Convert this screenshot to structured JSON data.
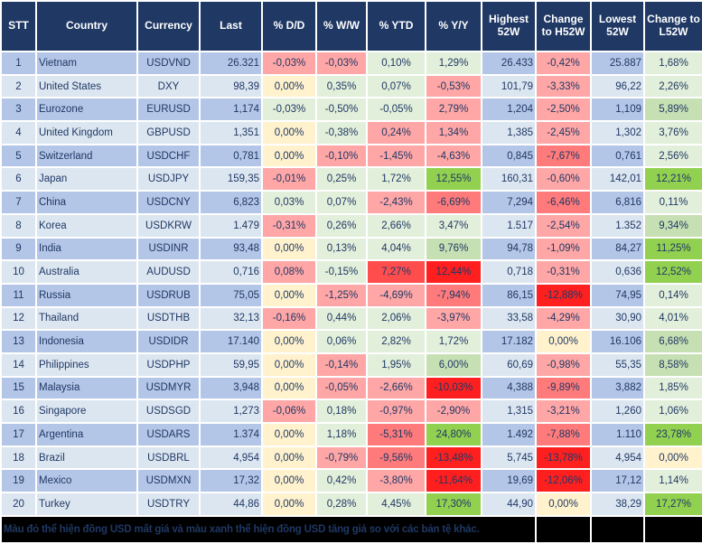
{
  "title": "FX rate table",
  "palette": {
    "header_bg": "#1F3864",
    "header_text": "#FFFFFF",
    "grid": "#FFFFFF",
    "text": "#1F3864",
    "row_odd": "#B4C6E7",
    "row_even": "#DCE6F1",
    "neutral": "#FFF2CC",
    "green_light": "#E2EFDA",
    "green_med": "#C6E0B4",
    "green_strong": "#92D050",
    "red_light": "#FFA6A6",
    "red_med": "#FF7B7B",
    "red_strong": "#FF4D4D",
    "red_deep": "#FF1F1F",
    "note_bg": "#000000",
    "note_text": "#2F3BBF"
  },
  "columns": [
    {
      "id": "stt",
      "label": "STT"
    },
    {
      "id": "country",
      "label": "Country"
    },
    {
      "id": "currency",
      "label": "Currency"
    },
    {
      "id": "last",
      "label": "Last"
    },
    {
      "id": "dd",
      "label": "% D/D"
    },
    {
      "id": "ww",
      "label": "% W/W"
    },
    {
      "id": "ytd",
      "label": "% YTD"
    },
    {
      "id": "yy",
      "label": "% Y/Y"
    },
    {
      "id": "high",
      "label": "Highest 52W"
    },
    {
      "id": "chg_h",
      "label": "Change to H52W"
    },
    {
      "id": "low",
      "label": "Lowest 52W"
    },
    {
      "id": "chg_l",
      "label": "Change to L52W"
    }
  ],
  "rows": [
    {
      "stt": "1",
      "country": "Vietnam",
      "currency": "USDVND",
      "last": "26.321",
      "dd": {
        "v": "-0,03%",
        "c": "rl"
      },
      "ww": {
        "v": "-0,03%",
        "c": "rl"
      },
      "ytd": {
        "v": "0,10%",
        "c": "gl"
      },
      "yy": {
        "v": "1,29%",
        "c": "gl"
      },
      "high": "26.433",
      "chg_h": {
        "v": "-0,42%",
        "c": "rl"
      },
      "low": "25.887",
      "chg_l": {
        "v": "1,68%",
        "c": "gl"
      }
    },
    {
      "stt": "2",
      "country": "United States",
      "currency": "DXY",
      "last": "98,39",
      "dd": {
        "v": "0,00%",
        "c": "n"
      },
      "ww": {
        "v": "0,35%",
        "c": "gl"
      },
      "ytd": {
        "v": "0,07%",
        "c": "gl"
      },
      "yy": {
        "v": "-0,53%",
        "c": "rl"
      },
      "high": "101,79",
      "chg_h": {
        "v": "-3,33%",
        "c": "rl"
      },
      "low": "96,22",
      "chg_l": {
        "v": "2,26%",
        "c": "gl"
      }
    },
    {
      "stt": "3",
      "country": "Eurozone",
      "currency": "EURUSD",
      "last": "1,174",
      "dd": {
        "v": "-0,03%",
        "c": "gl"
      },
      "ww": {
        "v": "-0,50%",
        "c": "gl"
      },
      "ytd": {
        "v": "-0,05%",
        "c": "gl"
      },
      "yy": {
        "v": "2,79%",
        "c": "rl"
      },
      "high": "1,204",
      "chg_h": {
        "v": "-2,50%",
        "c": "rl"
      },
      "low": "1,109",
      "chg_l": {
        "v": "5,89%",
        "c": "gm"
      }
    },
    {
      "stt": "4",
      "country": "United Kingdom",
      "currency": "GBPUSD",
      "last": "1,351",
      "dd": {
        "v": "0,00%",
        "c": "n"
      },
      "ww": {
        "v": "-0,38%",
        "c": "gl"
      },
      "ytd": {
        "v": "0,24%",
        "c": "rl"
      },
      "yy": {
        "v": "1,34%",
        "c": "rl"
      },
      "high": "1,385",
      "chg_h": {
        "v": "-2,45%",
        "c": "rl"
      },
      "low": "1,302",
      "chg_l": {
        "v": "3,76%",
        "c": "gl"
      }
    },
    {
      "stt": "5",
      "country": "Switzerland",
      "currency": "USDCHF",
      "last": "0,781",
      "dd": {
        "v": "0,00%",
        "c": "n"
      },
      "ww": {
        "v": "-0,10%",
        "c": "rl"
      },
      "ytd": {
        "v": "-1,45%",
        "c": "rl"
      },
      "yy": {
        "v": "-4,63%",
        "c": "rl"
      },
      "high": "0,845",
      "chg_h": {
        "v": "-7,67%",
        "c": "rm"
      },
      "low": "0,761",
      "chg_l": {
        "v": "2,56%",
        "c": "gl"
      }
    },
    {
      "stt": "6",
      "country": "Japan",
      "currency": "USDJPY",
      "last": "159,35",
      "dd": {
        "v": "-0,01%",
        "c": "rl"
      },
      "ww": {
        "v": "0,25%",
        "c": "gl"
      },
      "ytd": {
        "v": "1,72%",
        "c": "gl"
      },
      "yy": {
        "v": "12,55%",
        "c": "gs"
      },
      "high": "160,31",
      "chg_h": {
        "v": "-0,60%",
        "c": "rl"
      },
      "low": "142,01",
      "chg_l": {
        "v": "12,21%",
        "c": "gs"
      }
    },
    {
      "stt": "7",
      "country": "China",
      "currency": "USDCNY",
      "last": "6,823",
      "dd": {
        "v": "0,03%",
        "c": "gl"
      },
      "ww": {
        "v": "0,07%",
        "c": "gl"
      },
      "ytd": {
        "v": "-2,43%",
        "c": "rl"
      },
      "yy": {
        "v": "-6,69%",
        "c": "rm"
      },
      "high": "7,294",
      "chg_h": {
        "v": "-6,46%",
        "c": "rm"
      },
      "low": "6,816",
      "chg_l": {
        "v": "0,11%",
        "c": "gl"
      }
    },
    {
      "stt": "8",
      "country": "Korea",
      "currency": "USDKRW",
      "last": "1.479",
      "dd": {
        "v": "-0,31%",
        "c": "rl"
      },
      "ww": {
        "v": "0,26%",
        "c": "gl"
      },
      "ytd": {
        "v": "2,66%",
        "c": "gl"
      },
      "yy": {
        "v": "3,47%",
        "c": "gl"
      },
      "high": "1.517",
      "chg_h": {
        "v": "-2,54%",
        "c": "rl"
      },
      "low": "1.352",
      "chg_l": {
        "v": "9,34%",
        "c": "gm"
      }
    },
    {
      "stt": "9",
      "country": "India",
      "currency": "USDINR",
      "last": "93,48",
      "dd": {
        "v": "0,00%",
        "c": "n"
      },
      "ww": {
        "v": "0,13%",
        "c": "gl"
      },
      "ytd": {
        "v": "4,04%",
        "c": "gl"
      },
      "yy": {
        "v": "9,76%",
        "c": "gm"
      },
      "high": "94,78",
      "chg_h": {
        "v": "-1,09%",
        "c": "rl"
      },
      "low": "84,27",
      "chg_l": {
        "v": "11,25%",
        "c": "gs"
      }
    },
    {
      "stt": "10",
      "country": "Australia",
      "currency": "AUDUSD",
      "last": "0,716",
      "dd": {
        "v": "0,08%",
        "c": "rl"
      },
      "ww": {
        "v": "-0,15%",
        "c": "gl"
      },
      "ytd": {
        "v": "7,27%",
        "c": "rs"
      },
      "yy": {
        "v": "12,44%",
        "c": "rd"
      },
      "high": "0,718",
      "chg_h": {
        "v": "-0,31%",
        "c": "rl"
      },
      "low": "0,636",
      "chg_l": {
        "v": "12,52%",
        "c": "gs"
      }
    },
    {
      "stt": "11",
      "country": "Russia",
      "currency": "USDRUB",
      "last": "75,05",
      "dd": {
        "v": "0,00%",
        "c": "n"
      },
      "ww": {
        "v": "-1,25%",
        "c": "rl"
      },
      "ytd": {
        "v": "-4,69%",
        "c": "rl"
      },
      "yy": {
        "v": "-7,94%",
        "c": "rm"
      },
      "high": "86,15",
      "chg_h": {
        "v": "-12,88%",
        "c": "rd"
      },
      "low": "74,95",
      "chg_l": {
        "v": "0,14%",
        "c": "gl"
      }
    },
    {
      "stt": "12",
      "country": "Thailand",
      "currency": "USDTHB",
      "last": "32,13",
      "dd": {
        "v": "-0,16%",
        "c": "rl"
      },
      "ww": {
        "v": "0,44%",
        "c": "gl"
      },
      "ytd": {
        "v": "2,06%",
        "c": "gl"
      },
      "yy": {
        "v": "-3,97%",
        "c": "rl"
      },
      "high": "33,58",
      "chg_h": {
        "v": "-4,29%",
        "c": "rl"
      },
      "low": "30,90",
      "chg_l": {
        "v": "4,01%",
        "c": "gl"
      }
    },
    {
      "stt": "13",
      "country": "Indonesia",
      "currency": "USDIDR",
      "last": "17.140",
      "dd": {
        "v": "0,00%",
        "c": "n"
      },
      "ww": {
        "v": "0,06%",
        "c": "gl"
      },
      "ytd": {
        "v": "2,82%",
        "c": "gl"
      },
      "yy": {
        "v": "1,72%",
        "c": "gl"
      },
      "high": "17.182",
      "chg_h": {
        "v": "0,00%",
        "c": "n"
      },
      "low": "16.106",
      "chg_l": {
        "v": "6,68%",
        "c": "gm"
      }
    },
    {
      "stt": "14",
      "country": "Philippines",
      "currency": "USDPHP",
      "last": "59,95",
      "dd": {
        "v": "0,00%",
        "c": "n"
      },
      "ww": {
        "v": "-0,14%",
        "c": "rl"
      },
      "ytd": {
        "v": "1,95%",
        "c": "gl"
      },
      "yy": {
        "v": "6,00%",
        "c": "gm"
      },
      "high": "60,69",
      "chg_h": {
        "v": "-0,98%",
        "c": "rl"
      },
      "low": "55,35",
      "chg_l": {
        "v": "8,58%",
        "c": "gm"
      }
    },
    {
      "stt": "15",
      "country": "Malaysia",
      "currency": "USDMYR",
      "last": "3,948",
      "dd": {
        "v": "0,00%",
        "c": "n"
      },
      "ww": {
        "v": "-0,05%",
        "c": "rl"
      },
      "ytd": {
        "v": "-2,66%",
        "c": "rl"
      },
      "yy": {
        "v": "-10,03%",
        "c": "rd"
      },
      "high": "4,388",
      "chg_h": {
        "v": "-9,89%",
        "c": "rm"
      },
      "low": "3,882",
      "chg_l": {
        "v": "1,85%",
        "c": "gl"
      }
    },
    {
      "stt": "16",
      "country": "Singapore",
      "currency": "USDSGD",
      "last": "1,273",
      "dd": {
        "v": "-0,06%",
        "c": "rl"
      },
      "ww": {
        "v": "0,18%",
        "c": "gl"
      },
      "ytd": {
        "v": "-0,97%",
        "c": "rl"
      },
      "yy": {
        "v": "-2,90%",
        "c": "rl"
      },
      "high": "1,315",
      "chg_h": {
        "v": "-3,21%",
        "c": "rl"
      },
      "low": "1,260",
      "chg_l": {
        "v": "1,06%",
        "c": "gl"
      }
    },
    {
      "stt": "17",
      "country": "Argentina",
      "currency": "USDARS",
      "last": "1.374",
      "dd": {
        "v": "0,00%",
        "c": "n"
      },
      "ww": {
        "v": "1,18%",
        "c": "gl"
      },
      "ytd": {
        "v": "-5,31%",
        "c": "rm"
      },
      "yy": {
        "v": "24,80%",
        "c": "gs"
      },
      "high": "1.492",
      "chg_h": {
        "v": "-7,88%",
        "c": "rm"
      },
      "low": "1.110",
      "chg_l": {
        "v": "23,78%",
        "c": "gs"
      }
    },
    {
      "stt": "18",
      "country": "Brazil",
      "currency": "USDBRL",
      "last": "4,954",
      "dd": {
        "v": "0,00%",
        "c": "n"
      },
      "ww": {
        "v": "-0,79%",
        "c": "rl"
      },
      "ytd": {
        "v": "-9,56%",
        "c": "rm"
      },
      "yy": {
        "v": "-13,48%",
        "c": "rd"
      },
      "high": "5,745",
      "chg_h": {
        "v": "-13,78%",
        "c": "rd"
      },
      "low": "4,954",
      "chg_l": {
        "v": "0,00%",
        "c": "n"
      }
    },
    {
      "stt": "19",
      "country": "Mexico",
      "currency": "USDMXN",
      "last": "17,32",
      "dd": {
        "v": "0,00%",
        "c": "n"
      },
      "ww": {
        "v": "0,42%",
        "c": "gl"
      },
      "ytd": {
        "v": "-3,80%",
        "c": "rl"
      },
      "yy": {
        "v": "-11,64%",
        "c": "rd"
      },
      "high": "19,69",
      "chg_h": {
        "v": "-12,06%",
        "c": "rd"
      },
      "low": "17,12",
      "chg_l": {
        "v": "1,14%",
        "c": "gl"
      }
    },
    {
      "stt": "20",
      "country": "Turkey",
      "currency": "USDTRY",
      "last": "44,86",
      "dd": {
        "v": "0,00%",
        "c": "n"
      },
      "ww": {
        "v": "0,28%",
        "c": "gl"
      },
      "ytd": {
        "v": "4,45%",
        "c": "gl"
      },
      "yy": {
        "v": "17,30%",
        "c": "gs"
      },
      "high": "44,90",
      "chg_h": {
        "v": "0,00%",
        "c": "n"
      },
      "low": "38,29",
      "chg_l": {
        "v": "17,27%",
        "c": "gs"
      }
    }
  ],
  "footer": {
    "note": "Màu đỏ thể hiện đồng USD mất giá và màu xanh thể hiện đồng USD tăng giá so với các bản tệ khác."
  }
}
